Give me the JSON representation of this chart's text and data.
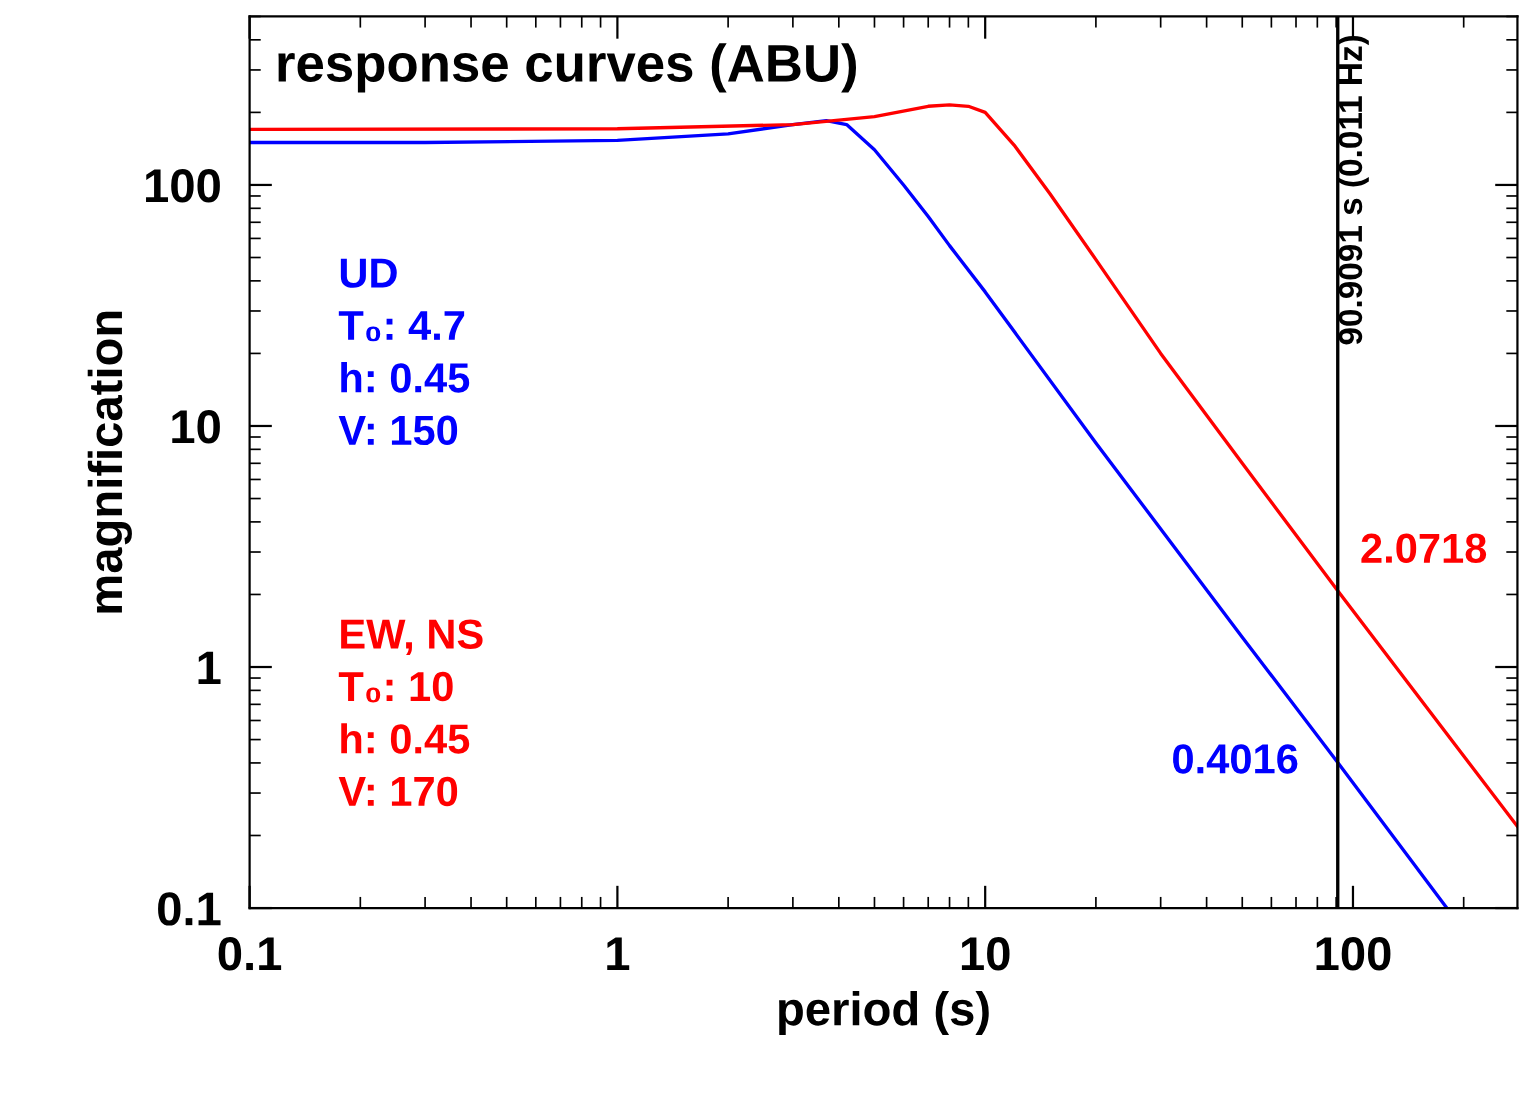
{
  "chart_data": {
    "type": "line",
    "title": "response curves (ABU)",
    "xlabel": "period (s)",
    "ylabel": "magnification",
    "log": "xy",
    "xlim": [
      0.1,
      280
    ],
    "xticks": [
      0.1,
      1,
      10,
      100
    ],
    "ylim": [
      0.1,
      500
    ],
    "yticks": [
      0.1,
      1,
      10,
      100
    ],
    "grid": false,
    "legend": "left",
    "marker": "none",
    "line_style": "solid",
    "series": [
      {
        "name": "UD",
        "color": "#0000ff",
        "x": [
          0.1,
          0.3,
          1,
          2,
          3,
          3.7,
          4.2,
          5,
          6,
          7,
          8,
          10,
          20,
          50,
          90.9091,
          180
        ],
        "values": [
          150,
          150,
          153,
          163,
          178,
          185,
          178,
          140,
          100,
          74,
          56,
          36,
          8.5,
          1.33,
          0.4016,
          0.1
        ]
      },
      {
        "name": "EW, NS",
        "color": "#ff0000",
        "x": [
          0.1,
          1,
          3,
          5,
          7,
          8,
          9,
          10,
          12,
          15,
          20,
          30,
          50,
          90.9091,
          280
        ],
        "values": [
          170,
          171,
          178,
          192,
          212,
          215,
          212,
          200,
          146,
          92,
          49,
          20,
          7,
          2.0718,
          0.218
        ]
      }
    ],
    "ref_lines": [
      {
        "axis": "x",
        "value": 90.9091,
        "label": "90.9091 s (0.011 Hz)",
        "color": "#000000"
      }
    ],
    "annotations": [
      "T₀: 4.7",
      "h: 0.45",
      "V: 150",
      "T₀: 10",
      "h: 0.45",
      "V: 170",
      {
        "text": "0.4016",
        "x": 90.9091,
        "y": 0.4016
      },
      {
        "text": "2.0718",
        "x": 90.9091,
        "y": 2.0718
      }
    ]
  }
}
